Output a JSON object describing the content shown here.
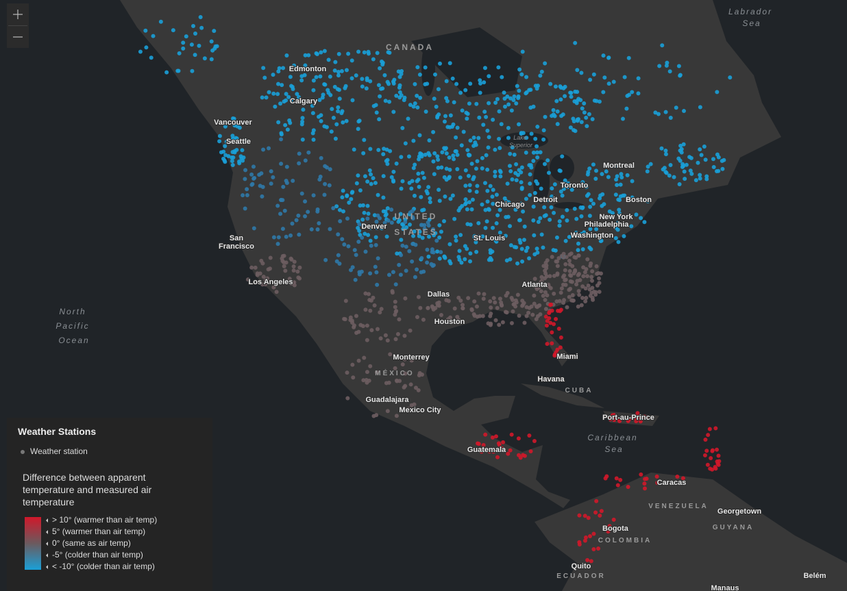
{
  "map": {
    "countries": [
      "CANADA",
      [
        "UNITED",
        "STATES"
      ],
      "MÉXICO",
      "CUBA",
      "VENEZUELA",
      "COLOMBIA",
      "GUYANA",
      "ECUADOR"
    ],
    "cities": [
      "Edmonton",
      "Calgary",
      "Vancouver",
      "Seattle",
      [
        "San",
        "Francisco"
      ],
      "Los Angeles",
      "Denver",
      "Dallas",
      "Houston",
      "Monterrey",
      "Guadalajara",
      "Mexico City",
      "Chicago",
      "Detroit",
      "St. Louis",
      "Atlanta",
      "Miami",
      "Havana",
      "Toronto",
      "Montreal",
      "Boston",
      "New York",
      "Philadelphia",
      "Washington",
      "Port-au-Prince",
      "Guatemala",
      "Caracas",
      "Georgetown",
      "Bogota",
      "Quito",
      "Belém",
      "Manaus"
    ],
    "water": [
      [
        "Labrador",
        "Sea"
      ],
      [
        "Lake",
        "Superior"
      ],
      [
        "North",
        "Pacific",
        "Ocean"
      ],
      [
        "Caribbean",
        "Sea"
      ]
    ]
  },
  "legend": {
    "title": "Weather Stations",
    "station": "Weather station",
    "heading": "Difference between apparent temperature and measured air temperature",
    "stops": [
      "> 10° (warmer than air temp)",
      "5° (warmer than air temp)",
      "0° (same as air temp)",
      "-5° (colder than air temp)",
      "< -10° (colder than air temp)"
    ]
  }
}
